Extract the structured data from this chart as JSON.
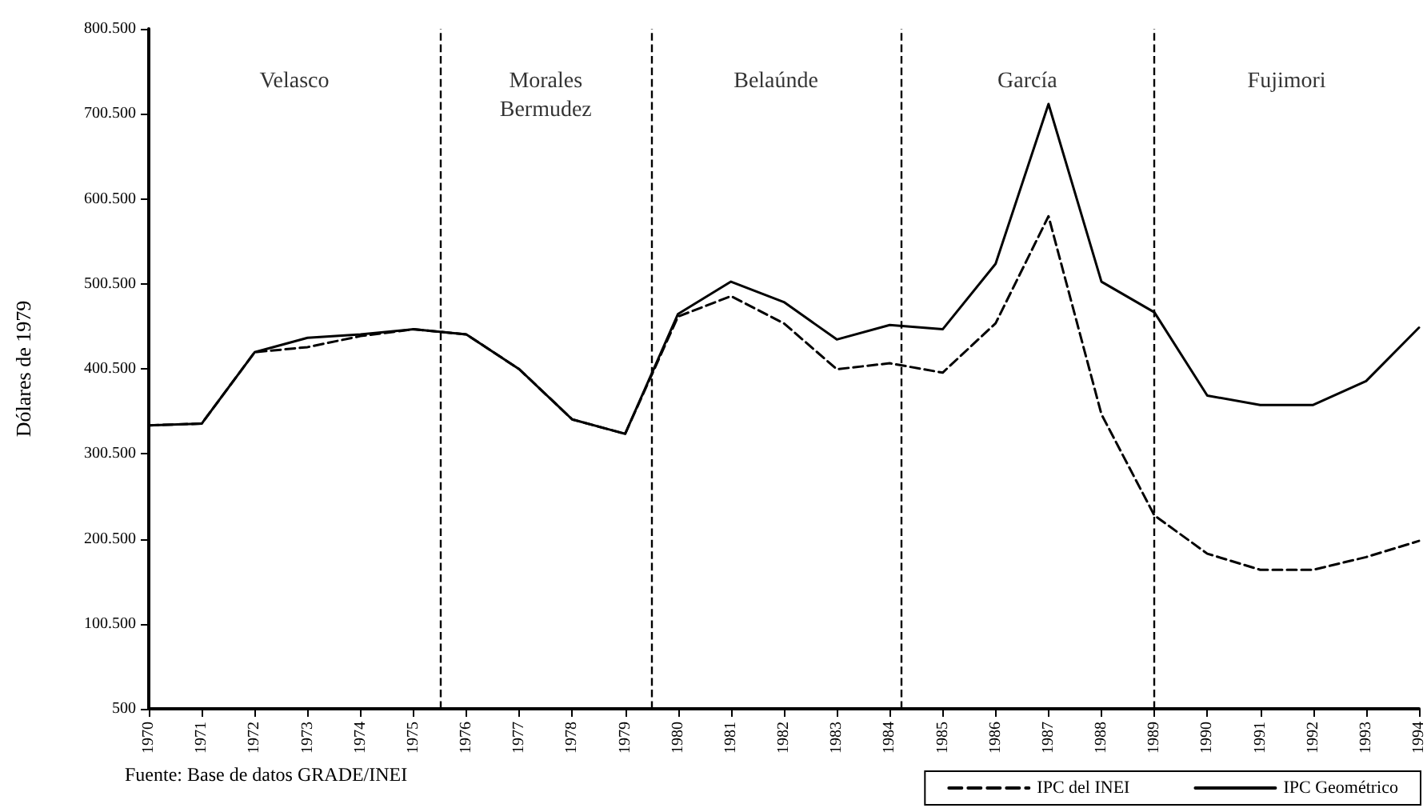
{
  "chart_data": {
    "type": "line",
    "ylabel": "Dólares de 1979",
    "x": [
      1970,
      1971,
      1972,
      1973,
      1974,
      1975,
      1976,
      1977,
      1978,
      1979,
      1980,
      1981,
      1982,
      1983,
      1984,
      1985,
      1986,
      1987,
      1988,
      1989,
      1990,
      1991,
      1992,
      1993,
      1994
    ],
    "series": [
      {
        "name": "IPC del INEI",
        "color": "#000000",
        "line_style": "dashed",
        "values": [
          334000,
          336000,
          420000,
          426000,
          439000,
          447000,
          441000,
          400000,
          341000,
          324000,
          462000,
          486000,
          454000,
          400000,
          407000,
          396000,
          454000,
          580000,
          347000,
          228000,
          183000,
          164000,
          164000,
          179000,
          198000
        ]
      },
      {
        "name": "IPC Geométrico",
        "color": "#000000",
        "line_style": "solid",
        "values": [
          334000,
          336000,
          420000,
          437000,
          441000,
          447000,
          441000,
          400000,
          341000,
          324000,
          465000,
          503000,
          479000,
          435000,
          452000,
          447000,
          524000,
          712000,
          503000,
          467000,
          369000,
          358000,
          358000,
          386000,
          449000
        ]
      }
    ],
    "xlim": [
      1970,
      1994
    ],
    "xticks": [
      1970,
      1971,
      1972,
      1973,
      1974,
      1975,
      1976,
      1977,
      1978,
      1979,
      1980,
      1981,
      1982,
      1983,
      1984,
      1985,
      1986,
      1987,
      1988,
      1989,
      1990,
      1991,
      1992,
      1993,
      1994
    ],
    "ylim": [
      500,
      800500
    ],
    "yticks": [
      {
        "value": 500,
        "label": "500"
      },
      {
        "value": 100500,
        "label": "100.500"
      },
      {
        "value": 200500,
        "label": "200.500"
      },
      {
        "value": 300500,
        "label": "300.500"
      },
      {
        "value": 400500,
        "label": "400.500"
      },
      {
        "value": 500500,
        "label": "500.500"
      },
      {
        "value": 600500,
        "label": "600.500"
      },
      {
        "value": 700500,
        "label": "700.500"
      },
      {
        "value": 800500,
        "label": "800.500"
      }
    ],
    "ref_lines": [
      {
        "axis": "x",
        "value": 1975.5,
        "color": "#000000",
        "line_style": "dashed"
      },
      {
        "axis": "x",
        "value": 1979.5,
        "color": "#000000",
        "line_style": "dashed"
      },
      {
        "axis": "x",
        "value": 1984.2,
        "color": "#000000",
        "line_style": "dashed"
      },
      {
        "axis": "x",
        "value": 1989,
        "color": "#000000",
        "line_style": "dashed"
      }
    ],
    "annotations": [
      "Velasco",
      "Morales\nBermudez",
      "Belaúnde",
      "García",
      "Fujimori",
      "Fuente: Base de datos GRADE/INEI"
    ],
    "marker": "none",
    "grid": false,
    "legend": "bottom right"
  }
}
